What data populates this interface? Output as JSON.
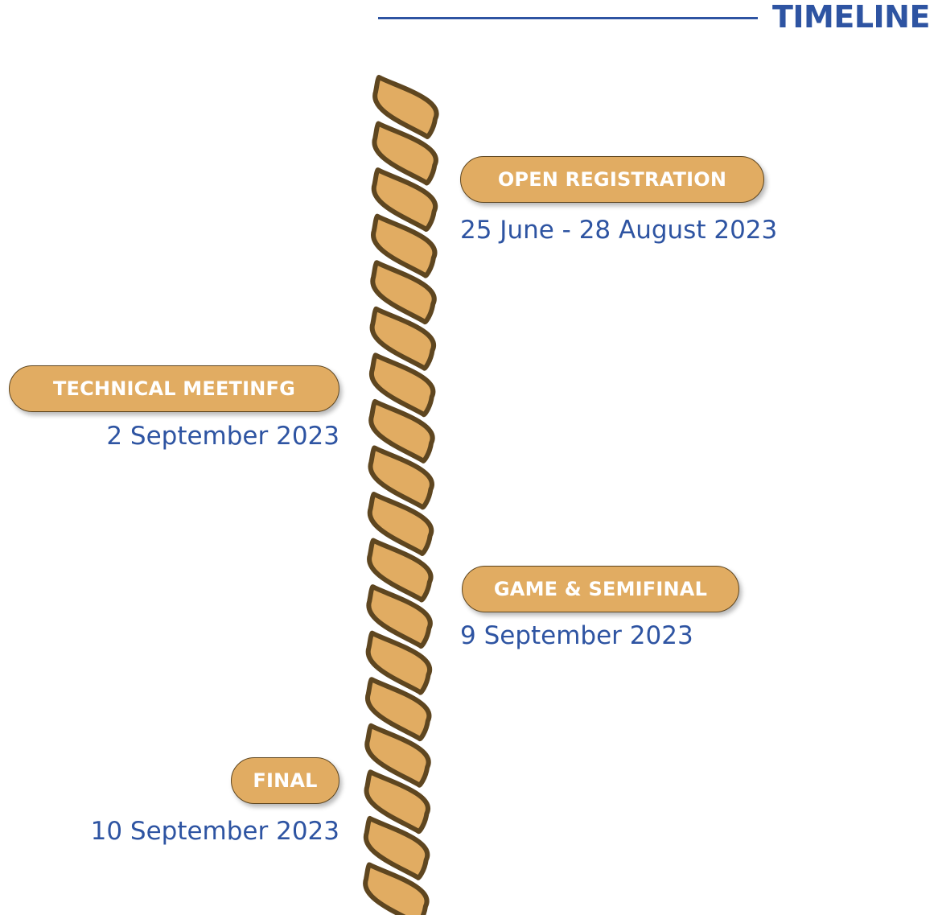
{
  "header": {
    "title": "TIMELINE"
  },
  "events": [
    {
      "label": "OPEN REGISTRATION",
      "date": "25 June - 28 August 2023"
    },
    {
      "label": "TECHNICAL MEETINFG",
      "date": "2 September 2023"
    },
    {
      "label": "GAME & SEMIFINAL",
      "date": "9 September 2023"
    },
    {
      "label": "FINAL",
      "date": "10 September 2023"
    }
  ],
  "colors": {
    "accent": "#2e54a2",
    "rope_fill": "#e1ac62",
    "rope_outline": "#5e4620",
    "pill_fill": "#e1ac62",
    "pill_text": "#ffffff"
  }
}
